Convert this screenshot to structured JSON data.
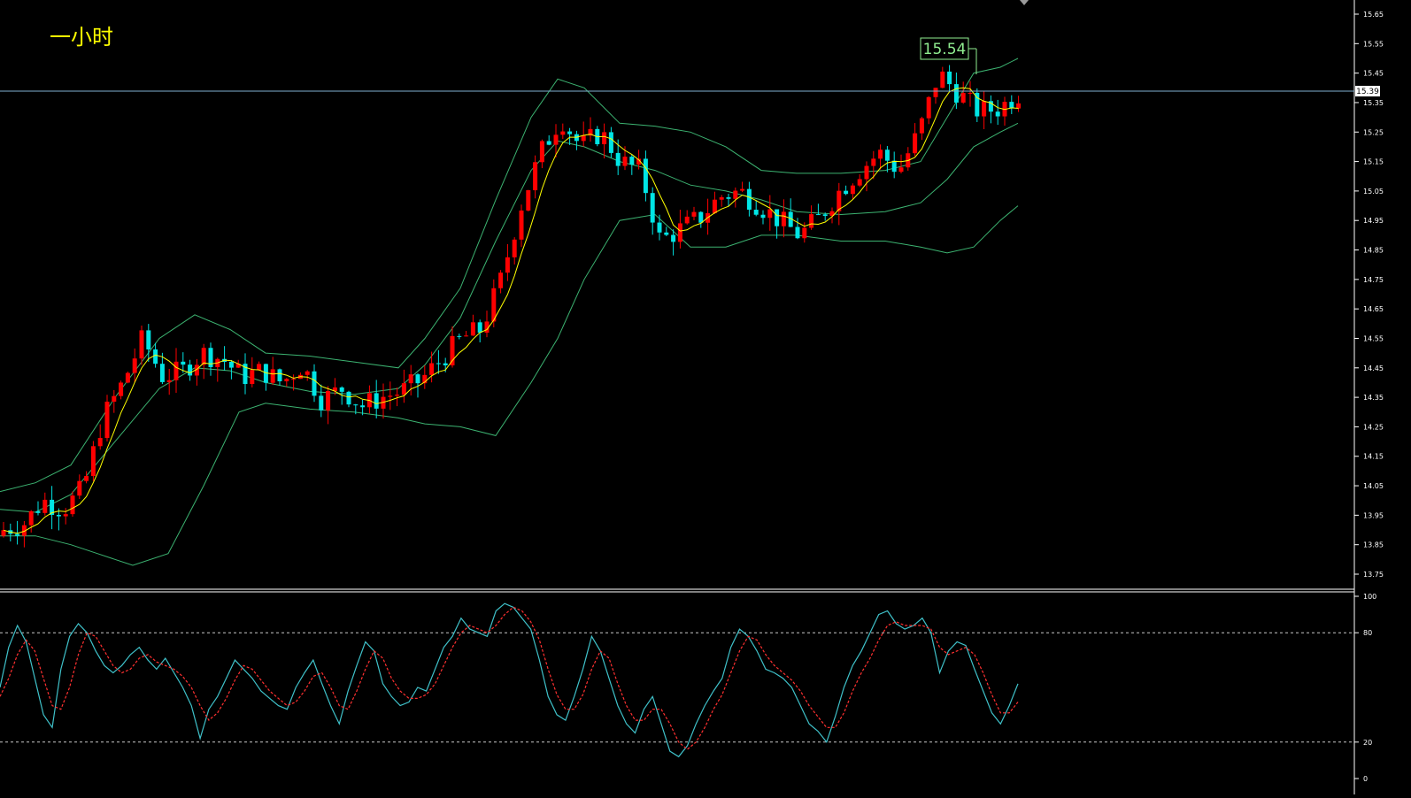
{
  "timeframe_label": "一小时",
  "high_marker_label": "15.54",
  "current_price_label": "15.39",
  "colors": {
    "background": "#000000",
    "up_candle": "#ff0000",
    "down_candle": "#00e5e5",
    "bollinger": "#3cb371",
    "ma": "#ffff00",
    "stoch_k": "#3fc1c9",
    "stoch_d": "#ff3030",
    "price_line": "#7fb0d0",
    "axis_text": "#ffffff",
    "label_text": "#ffff00",
    "marker_border": "#90ee90"
  },
  "chart_data": [
    {
      "type": "candlestick",
      "ylim": [
        13.7,
        15.68
      ],
      "y_ticks": [
        "15.65",
        "15.55",
        "15.45",
        "15.35",
        "15.25",
        "15.15",
        "15.05",
        "14.95",
        "14.85",
        "14.75",
        "14.65",
        "14.55",
        "14.45",
        "14.35",
        "14.25",
        "14.15",
        "14.05",
        "13.95",
        "13.85",
        "13.75"
      ],
      "current_price": 15.39,
      "high_marker": 15.54,
      "waypoints": [
        13.9,
        13.92,
        14.0,
        13.97,
        14.04,
        14.28,
        14.4,
        14.55,
        14.42,
        14.44,
        14.5,
        14.48,
        14.42,
        14.44,
        14.4,
        14.46,
        14.34,
        14.38,
        14.32,
        14.35,
        14.37,
        14.41,
        14.48,
        14.55,
        14.58,
        14.75,
        15.0,
        15.18,
        15.3,
        15.2,
        15.25,
        15.15,
        15.12,
        14.88,
        14.92,
        14.96,
        15.03,
        15.05,
        15.0,
        14.95,
        14.9,
        14.96,
        15.05,
        15.12,
        15.18,
        15.12,
        15.25,
        15.45,
        15.38,
        15.32,
        15.33,
        15.38
      ],
      "bollinger_upper": [
        [
          0,
          14.03
        ],
        [
          40,
          14.06
        ],
        [
          80,
          14.12
        ],
        [
          130,
          14.35
        ],
        [
          180,
          14.55
        ],
        [
          220,
          14.63
        ],
        [
          260,
          14.58
        ],
        [
          300,
          14.5
        ],
        [
          350,
          14.49
        ],
        [
          400,
          14.47
        ],
        [
          450,
          14.45
        ],
        [
          480,
          14.55
        ],
        [
          520,
          14.72
        ],
        [
          560,
          15.02
        ],
        [
          600,
          15.3
        ],
        [
          630,
          15.43
        ],
        [
          660,
          15.4
        ],
        [
          700,
          15.28
        ],
        [
          740,
          15.27
        ],
        [
          780,
          15.25
        ],
        [
          820,
          15.2
        ],
        [
          860,
          15.12
        ],
        [
          900,
          15.11
        ],
        [
          950,
          15.11
        ],
        [
          1000,
          15.12
        ],
        [
          1040,
          15.15
        ],
        [
          1070,
          15.3
        ],
        [
          1100,
          15.45
        ],
        [
          1130,
          15.47
        ],
        [
          1150,
          15.5
        ]
      ],
      "bollinger_mid": [
        [
          0,
          13.97
        ],
        [
          40,
          13.96
        ],
        [
          80,
          14.02
        ],
        [
          130,
          14.2
        ],
        [
          180,
          14.38
        ],
        [
          220,
          14.45
        ],
        [
          260,
          14.44
        ],
        [
          300,
          14.4
        ],
        [
          350,
          14.37
        ],
        [
          400,
          14.36
        ],
        [
          450,
          14.38
        ],
        [
          480,
          14.46
        ],
        [
          520,
          14.62
        ],
        [
          560,
          14.88
        ],
        [
          600,
          15.12
        ],
        [
          630,
          15.22
        ],
        [
          660,
          15.2
        ],
        [
          700,
          15.15
        ],
        [
          740,
          15.12
        ],
        [
          780,
          15.07
        ],
        [
          820,
          15.05
        ],
        [
          860,
          15.02
        ],
        [
          900,
          14.98
        ],
        [
          950,
          14.97
        ],
        [
          1000,
          14.98
        ],
        [
          1040,
          15.01
        ],
        [
          1070,
          15.09
        ],
        [
          1100,
          15.2
        ],
        [
          1130,
          15.25
        ],
        [
          1150,
          15.28
        ]
      ],
      "bollinger_lower": [
        [
          0,
          13.88
        ],
        [
          40,
          13.88
        ],
        [
          80,
          13.85
        ],
        [
          110,
          13.82
        ],
        [
          150,
          13.78
        ],
        [
          190,
          13.82
        ],
        [
          230,
          14.05
        ],
        [
          270,
          14.3
        ],
        [
          300,
          14.33
        ],
        [
          350,
          14.31
        ],
        [
          400,
          14.3
        ],
        [
          450,
          14.28
        ],
        [
          480,
          14.26
        ],
        [
          520,
          14.25
        ],
        [
          560,
          14.22
        ],
        [
          600,
          14.4
        ],
        [
          630,
          14.55
        ],
        [
          660,
          14.75
        ],
        [
          700,
          14.95
        ],
        [
          740,
          14.97
        ],
        [
          780,
          14.86
        ],
        [
          820,
          14.86
        ],
        [
          860,
          14.9
        ],
        [
          900,
          14.9
        ],
        [
          950,
          14.88
        ],
        [
          1000,
          14.88
        ],
        [
          1040,
          14.86
        ],
        [
          1070,
          14.84
        ],
        [
          1100,
          14.86
        ],
        [
          1130,
          14.95
        ],
        [
          1150,
          15.0
        ]
      ]
    },
    {
      "type": "line",
      "name": "",
      "ylim": [
        0,
        100
      ],
      "y_ticks": [
        "100",
        "80",
        "20",
        "0"
      ],
      "levels": [
        80,
        20
      ],
      "k_values": [
        50,
        72,
        84,
        75,
        55,
        35,
        28,
        60,
        78,
        85,
        80,
        70,
        62,
        58,
        62,
        68,
        72,
        65,
        60,
        66,
        58,
        50,
        40,
        22,
        38,
        45,
        55,
        65,
        60,
        55,
        48,
        44,
        40,
        38,
        50,
        58,
        65,
        52,
        40,
        30,
        48,
        62,
        75,
        70,
        52,
        45,
        40,
        42,
        50,
        48,
        60,
        72,
        78,
        88,
        82,
        80,
        78,
        92,
        96,
        94,
        88,
        82,
        65,
        45,
        35,
        32,
        45,
        60,
        78,
        70,
        55,
        40,
        30,
        25,
        38,
        45,
        30,
        15,
        12,
        18,
        30,
        40,
        48,
        55,
        72,
        82,
        78,
        70,
        60,
        58,
        55,
        50,
        40,
        30,
        26,
        20,
        34,
        50,
        62,
        70,
        80,
        90,
        92,
        85,
        82,
        84,
        88,
        80,
        58,
        70,
        75,
        73,
        60,
        48,
        36,
        30,
        40,
        52
      ],
      "d_values": [
        45,
        55,
        68,
        76,
        70,
        55,
        40,
        38,
        50,
        68,
        80,
        78,
        70,
        62,
        58,
        60,
        66,
        68,
        64,
        62,
        60,
        56,
        50,
        40,
        32,
        36,
        44,
        54,
        62,
        60,
        54,
        48,
        44,
        40,
        42,
        48,
        56,
        58,
        50,
        40,
        38,
        48,
        60,
        70,
        66,
        55,
        48,
        44,
        44,
        46,
        52,
        62,
        72,
        80,
        84,
        82,
        80,
        84,
        90,
        94,
        92,
        86,
        76,
        60,
        46,
        38,
        38,
        46,
        60,
        70,
        66,
        52,
        40,
        32,
        32,
        38,
        38,
        30,
        20,
        16,
        20,
        28,
        38,
        46,
        58,
        70,
        78,
        76,
        68,
        62,
        58,
        54,
        48,
        40,
        34,
        28,
        28,
        36,
        48,
        58,
        66,
        76,
        84,
        86,
        84,
        84,
        84,
        82,
        72,
        68,
        70,
        72,
        68,
        58,
        46,
        36,
        36,
        42
      ]
    }
  ]
}
